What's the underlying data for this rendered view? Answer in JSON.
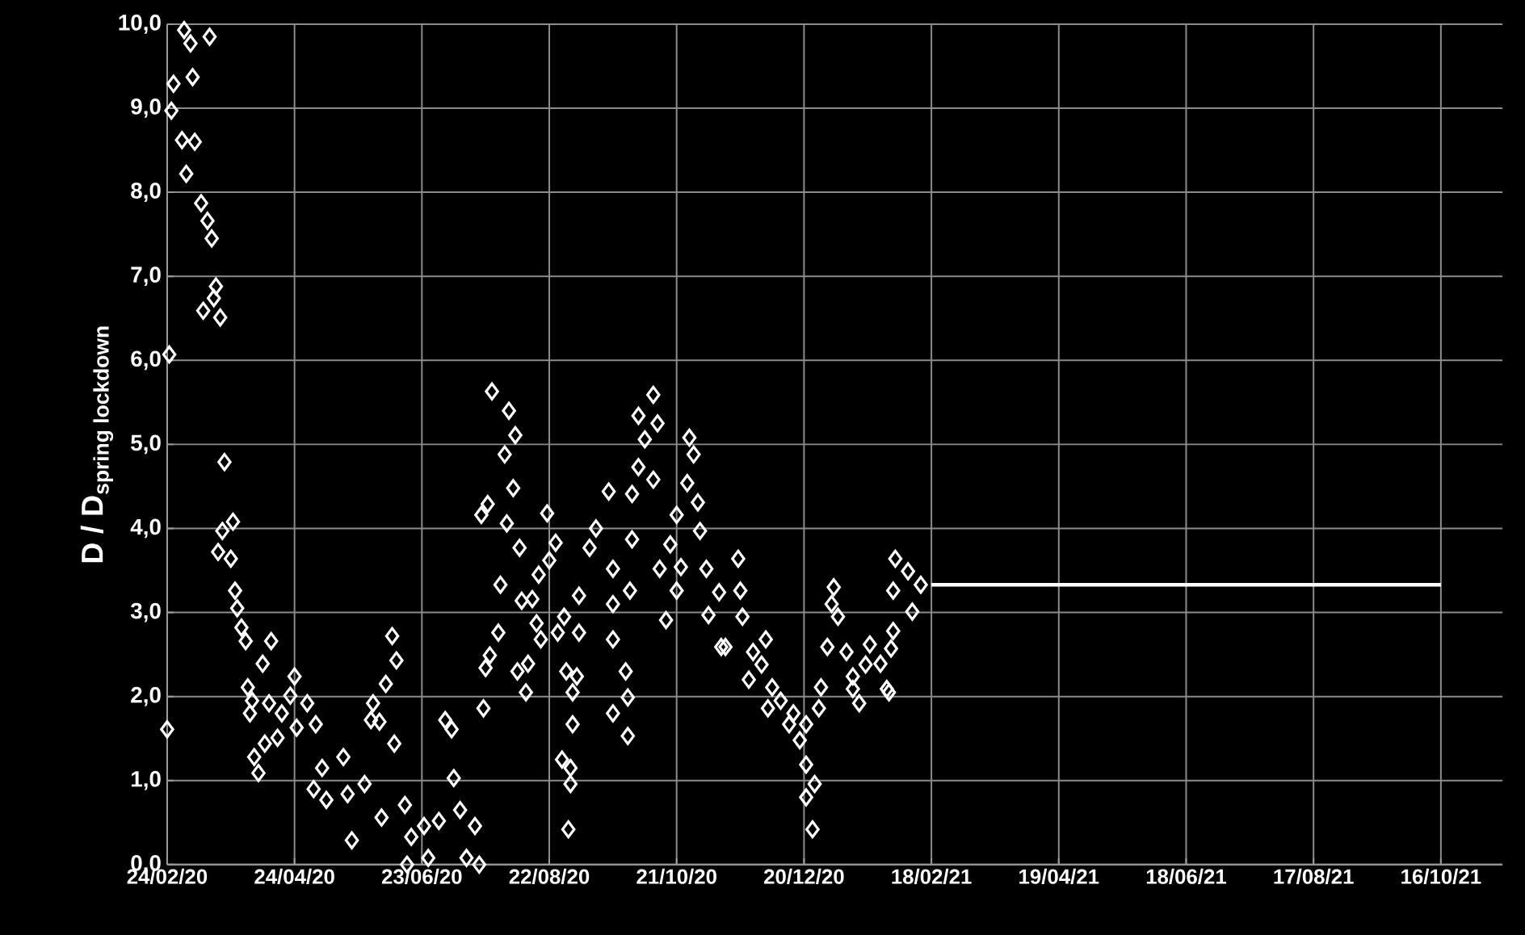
{
  "chart_data": {
    "type": "scatter",
    "ylabel": "\\text{\\bfseries D / D}_{\\text{\\bfseries spring lockdown}}",
    "xlim": [
      "2020-02-24",
      "2021-11-14"
    ],
    "ylim": [
      0,
      10
    ],
    "xticks": [
      {
        "value": "2020-02-24",
        "label": "24/02/20"
      },
      {
        "value": "2020-04-24",
        "label": "24/04/20"
      },
      {
        "value": "2020-06-23",
        "label": "23/06/20"
      },
      {
        "value": "2020-08-22",
        "label": "22/08/20"
      },
      {
        "value": "2020-10-21",
        "label": "21/10/20"
      },
      {
        "value": "2020-12-20",
        "label": "20/12/20"
      },
      {
        "value": "2021-02-18",
        "label": "18/02/21"
      },
      {
        "value": "2021-04-19",
        "label": "19/04/21"
      },
      {
        "value": "2021-06-18",
        "label": "18/06/21"
      },
      {
        "value": "2021-08-17",
        "label": "17/08/21"
      },
      {
        "value": "2021-10-16",
        "label": "16/10/21"
      }
    ],
    "yticks": [
      {
        "value": 0,
        "label": "0,0"
      },
      {
        "value": 1,
        "label": "1,0"
      },
      {
        "value": 2,
        "label": "2,0"
      },
      {
        "value": 3,
        "label": "3,0"
      },
      {
        "value": 4,
        "label": "4,0"
      },
      {
        "value": 5,
        "label": "5,0"
      },
      {
        "value": 6,
        "label": "6,0"
      },
      {
        "value": 7,
        "label": "7,0"
      },
      {
        "value": 8,
        "label": "8,0"
      },
      {
        "value": 9,
        "label": "9,0"
      },
      {
        "value": 10,
        "label": "10,0"
      }
    ],
    "grid": true,
    "series": [
      {
        "marker": "diamond",
        "color": "#ffffff",
        "x": [
          "2020-02-24",
          "2020-02-25",
          "2020-02-26",
          "2020-02-27",
          "2020-03-02",
          "2020-03-03",
          "2020-03-04",
          "2020-03-06",
          "2020-03-07",
          "2020-03-08",
          "2020-03-11",
          "2020-03-12",
          "2020-03-14",
          "2020-03-15",
          "2020-03-16",
          "2020-03-17",
          "2020-03-18",
          "2020-03-20",
          "2020-03-22",
          "2020-03-19",
          "2020-03-21",
          "2020-03-26",
          "2020-03-25",
          "2020-03-27",
          "2020-03-28",
          "2020-03-30",
          "2020-04-01",
          "2020-04-02",
          "2020-04-03",
          "2020-04-04",
          "2020-04-05",
          "2020-04-07",
          "2020-04-09",
          "2020-04-10",
          "2020-04-13",
          "2020-04-12",
          "2020-04-16",
          "2020-04-18",
          "2020-04-22",
          "2020-04-24",
          "2020-04-25",
          "2020-04-30",
          "2020-05-04",
          "2020-05-03",
          "2020-05-07",
          "2020-05-09",
          "2020-05-17",
          "2020-05-19",
          "2020-05-21",
          "2020-05-27",
          "2020-05-30",
          "2020-05-31",
          "2020-06-03",
          "2020-06-04",
          "2020-06-06",
          "2020-06-09",
          "2020-06-11",
          "2020-06-10",
          "2020-06-15",
          "2020-06-16",
          "2020-06-18",
          "2020-06-24",
          "2020-06-26",
          "2020-07-01",
          "2020-07-04",
          "2020-07-07",
          "2020-07-08",
          "2020-07-11",
          "2020-07-14",
          "2020-07-18",
          "2020-07-20",
          "2020-07-22",
          "2020-07-21",
          "2020-07-23",
          "2020-07-24",
          "2020-07-26",
          "2020-07-25",
          "2020-07-29",
          "2020-07-30",
          "2020-08-01",
          "2020-08-02",
          "2020-08-03",
          "2020-08-05",
          "2020-08-06",
          "2020-08-08",
          "2020-08-09",
          "2020-08-07",
          "2020-08-11",
          "2020-08-12",
          "2020-08-14",
          "2020-08-16",
          "2020-08-17",
          "2020-08-18",
          "2020-08-21",
          "2020-08-22",
          "2020-08-25",
          "2020-08-26",
          "2020-08-29",
          "2020-08-30",
          "2020-08-28",
          "2020-08-31",
          "2020-09-01",
          "2020-09-01",
          "2020-09-02",
          "2020-09-02",
          "2020-09-04",
          "2020-09-05",
          "2020-09-05",
          "2020-09-10",
          "2020-09-13",
          "2020-09-19",
          "2020-09-21",
          "2020-09-21",
          "2020-09-21",
          "2020-09-21",
          "2020-09-27",
          "2020-09-28",
          "2020-09-28",
          "2020-09-29",
          "2020-09-30",
          "2020-09-30",
          "2020-10-03",
          "2020-10-03",
          "2020-10-06",
          "2020-10-10",
          "2020-10-10",
          "2020-10-12",
          "2020-10-13",
          "2020-10-16",
          "2020-10-18",
          "2020-10-21",
          "2020-10-21",
          "2020-10-23",
          "2020-10-26",
          "2020-10-27",
          "2020-10-29",
          "2020-10-31",
          "2020-11-01",
          "2020-11-04",
          "2020-11-05",
          "2020-11-10",
          "2020-11-11",
          "2020-11-13",
          "2020-11-19",
          "2020-11-20",
          "2020-11-21",
          "2020-11-24",
          "2020-11-26",
          "2020-11-30",
          "2020-12-02",
          "2020-12-03",
          "2020-12-05",
          "2020-12-09",
          "2020-12-13",
          "2020-12-15",
          "2020-12-18",
          "2020-12-21",
          "2020-12-21",
          "2020-12-21",
          "2020-12-24",
          "2020-12-25",
          "2020-12-27",
          "2020-12-28",
          "2020-12-31",
          "2021-01-02",
          "2021-01-03",
          "2021-01-05",
          "2021-01-09",
          "2021-01-12",
          "2021-01-12",
          "2021-01-15",
          "2021-01-18",
          "2021-01-20",
          "2021-01-25",
          "2021-01-28",
          "2021-01-29",
          "2021-01-30",
          "2021-01-31",
          "2021-01-31",
          "2021-02-01",
          "2021-02-07",
          "2021-02-09",
          "2021-02-13"
        ],
        "values": [
          1.61,
          6.07,
          8.97,
          9.29,
          8.62,
          9.93,
          8.22,
          9.77,
          9.37,
          8.6,
          7.87,
          6.59,
          7.66,
          9.85,
          7.45,
          6.74,
          6.88,
          6.51,
          4.79,
          3.72,
          3.97,
          4.08,
          3.64,
          3.26,
          3.05,
          2.82,
          2.66,
          2.11,
          1.8,
          1.95,
          1.28,
          1.09,
          2.39,
          1.44,
          2.66,
          1.92,
          1.51,
          1.8,
          2.01,
          2.24,
          1.63,
          1.92,
          1.67,
          0.9,
          1.15,
          0.77,
          1.28,
          0.84,
          0.29,
          0.96,
          1.72,
          1.92,
          1.7,
          0.56,
          2.15,
          2.72,
          2.43,
          1.44,
          0.71,
          0.0,
          0.33,
          0.46,
          0.08,
          0.52,
          1.72,
          1.61,
          1.03,
          0.65,
          0.08,
          0.46,
          0.0,
          1.86,
          4.16,
          2.34,
          4.29,
          5.63,
          2.49,
          2.76,
          3.33,
          4.88,
          4.06,
          5.4,
          4.48,
          5.11,
          3.77,
          3.14,
          2.3,
          2.05,
          2.39,
          3.16,
          2.87,
          3.45,
          2.68,
          4.18,
          3.62,
          3.83,
          2.76,
          2.95,
          2.3,
          1.25,
          0.42,
          1.15,
          0.96,
          2.05,
          1.67,
          2.24,
          3.2,
          2.76,
          3.77,
          4.0,
          4.44,
          3.1,
          3.52,
          2.68,
          1.8,
          2.3,
          1.99,
          1.53,
          3.26,
          3.87,
          4.41,
          5.34,
          4.73,
          5.06,
          5.59,
          4.58,
          5.25,
          3.52,
          2.91,
          3.81,
          4.16,
          3.26,
          3.54,
          4.54,
          5.08,
          4.88,
          4.31,
          3.97,
          3.52,
          2.97,
          3.24,
          2.59,
          2.59,
          3.64,
          3.26,
          2.95,
          2.2,
          2.53,
          2.38,
          2.68,
          1.86,
          2.11,
          1.95,
          1.67,
          1.8,
          1.48,
          1.67,
          1.19,
          0.8,
          0.42,
          0.96,
          1.86,
          2.11,
          2.59,
          3.1,
          3.3,
          2.95,
          2.53,
          2.24,
          2.09,
          1.92,
          2.38,
          2.62,
          2.39,
          2.09,
          2.05,
          2.57,
          2.78,
          3.26,
          3.64,
          3.49,
          3.01,
          3.33
        ]
      },
      {
        "type": "line",
        "color": "#ffffff",
        "x": [
          "2021-02-18",
          "2021-10-16"
        ],
        "values": [
          3.33,
          3.33
        ]
      }
    ]
  }
}
